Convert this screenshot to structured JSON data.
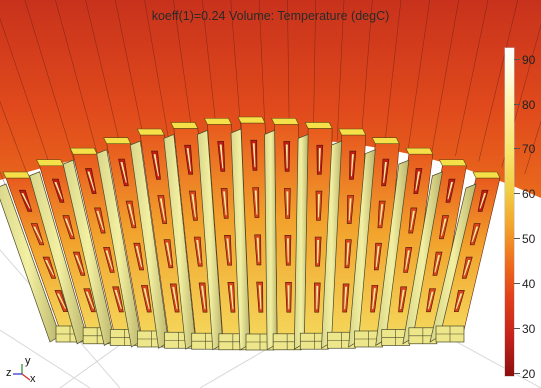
{
  "plot": {
    "title": "koeff(1)=0.24   Volume: Temperature (degC)"
  },
  "colorbar": {
    "ticks": [
      "90",
      "80",
      "70",
      "60",
      "50",
      "40",
      "30",
      "20"
    ],
    "colors": [
      "#ffffff",
      "#fff2a8",
      "#f2cf45",
      "#ee6b1d",
      "#c5231a",
      "#8c0f0e"
    ]
  },
  "axes": {
    "y": "y",
    "z": "z",
    "x": "x"
  }
}
